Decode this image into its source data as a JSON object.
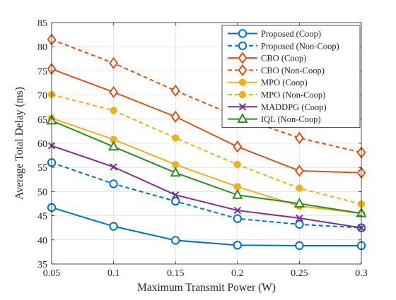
{
  "chart_data": {
    "type": "line",
    "xlabel": "Maximum Transmit Power (W)",
    "ylabel": "Average Total Delay (ms)",
    "x": [
      0.05,
      0.1,
      0.15,
      0.2,
      0.25,
      0.3
    ],
    "xlim": [
      0.05,
      0.3
    ],
    "ylim": [
      35,
      85
    ],
    "xticks": [
      "0.05",
      "0.1",
      "0.15",
      "0.2",
      "0.25",
      "0.3"
    ],
    "yticks": [
      "35",
      "40",
      "45",
      "50",
      "55",
      "60",
      "65",
      "70",
      "75",
      "80",
      "85"
    ],
    "grid": true,
    "legend_position": "top-right",
    "series": [
      {
        "name": "Proposed (Coop)",
        "color": "#0072BD",
        "dash": "solid",
        "marker": "circle",
        "values": [
          46.7,
          42.8,
          39.9,
          38.9,
          38.8,
          38.8
        ]
      },
      {
        "name": "Proposed (Non-Coop)",
        "color": "#0072BD",
        "dash": "dashed",
        "marker": "circle",
        "values": [
          56.0,
          51.6,
          48.0,
          44.4,
          43.2,
          42.5
        ]
      },
      {
        "name": "CBO (Coop)",
        "color": "#D95319",
        "dash": "solid",
        "marker": "diamond",
        "values": [
          75.4,
          70.6,
          65.5,
          59.3,
          54.3,
          53.9
        ]
      },
      {
        "name": "CBO (Non-Coop)",
        "color": "#D95319",
        "dash": "dashed",
        "marker": "diamond",
        "values": [
          81.5,
          76.6,
          70.9,
          65.5,
          61.1,
          58.1
        ]
      },
      {
        "name": "MPO (Coop)",
        "color": "#EDB120",
        "dash": "solid",
        "marker": "dot",
        "values": [
          65.2,
          60.8,
          55.6,
          51.0,
          47.0,
          45.5
        ]
      },
      {
        "name": "MPO (Non-Coop)",
        "color": "#EDB120",
        "dash": "dashed",
        "marker": "dot",
        "values": [
          70.1,
          66.8,
          61.1,
          55.6,
          50.7,
          47.4
        ]
      },
      {
        "name": "MADDPG (Coop)",
        "color": "#7E2F8E",
        "dash": "solid",
        "marker": "x",
        "values": [
          59.5,
          55.1,
          49.3,
          46.1,
          44.5,
          42.5
        ]
      },
      {
        "name": "IQL (Non-Coop)",
        "color": "#2E8B22",
        "dash": "solid",
        "marker": "triangle",
        "values": [
          64.7,
          59.3,
          53.9,
          49.3,
          47.5,
          45.5
        ]
      }
    ]
  }
}
